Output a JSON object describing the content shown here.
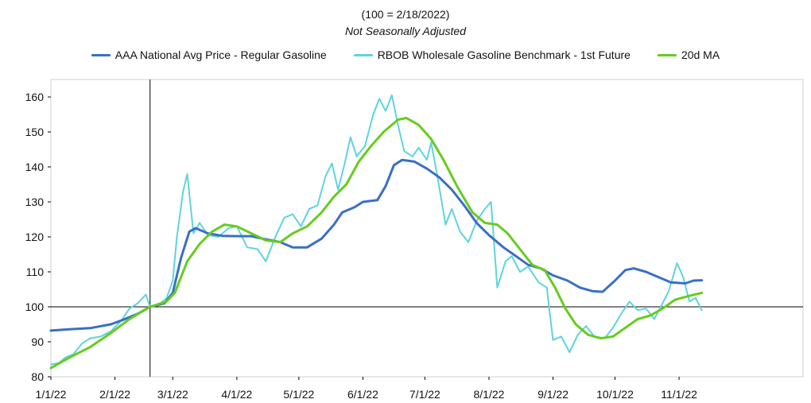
{
  "chart_data": {
    "type": "line",
    "title": "(100 = 2/18/2022)",
    "subtitle": "Not Seasonally Adjusted",
    "xlabel": "",
    "ylabel": "",
    "ylim": [
      80,
      165
    ],
    "yticks": [
      80,
      90,
      100,
      110,
      120,
      130,
      140,
      150,
      160
    ],
    "xticks": [
      "1/1/22",
      "2/1/22",
      "3/1/22",
      "4/1/22",
      "5/1/22",
      "6/1/22",
      "7/1/22",
      "8/1/22",
      "9/1/22",
      "10/1/22",
      "11/1/22"
    ],
    "xlim": [
      "2022-01-01",
      "2022-12-31"
    ],
    "reference_line": {
      "date": "2022-02-18",
      "value": 100
    },
    "grid": false,
    "legend_position": "top",
    "series": [
      {
        "name": "AAA National Avg Price - Regular Gasoline",
        "color": "#3a6fc4",
        "points": [
          [
            "2022-01-01",
            93.2
          ],
          [
            "2022-01-10",
            93.6
          ],
          [
            "2022-01-20",
            93.9
          ],
          [
            "2022-01-30",
            95.0
          ],
          [
            "2022-02-05",
            96.3
          ],
          [
            "2022-02-12",
            98.0
          ],
          [
            "2022-02-18",
            100.0
          ],
          [
            "2022-02-25",
            101.0
          ],
          [
            "2022-03-01",
            104.0
          ],
          [
            "2022-03-05",
            114.0
          ],
          [
            "2022-03-09",
            121.5
          ],
          [
            "2022-03-12",
            122.5
          ],
          [
            "2022-03-18",
            121.0
          ],
          [
            "2022-03-25",
            120.3
          ],
          [
            "2022-04-01",
            120.2
          ],
          [
            "2022-04-08",
            120.2
          ],
          [
            "2022-04-15",
            119.3
          ],
          [
            "2022-04-22",
            118.5
          ],
          [
            "2022-04-28",
            117.0
          ],
          [
            "2022-05-05",
            117.0
          ],
          [
            "2022-05-12",
            119.5
          ],
          [
            "2022-05-18",
            123.5
          ],
          [
            "2022-05-22",
            127.0
          ],
          [
            "2022-05-28",
            128.5
          ],
          [
            "2022-06-01",
            130.0
          ],
          [
            "2022-06-08",
            130.5
          ],
          [
            "2022-06-12",
            134.5
          ],
          [
            "2022-06-16",
            140.5
          ],
          [
            "2022-06-20",
            142.0
          ],
          [
            "2022-06-26",
            141.5
          ],
          [
            "2022-07-02",
            139.5
          ],
          [
            "2022-07-08",
            137.0
          ],
          [
            "2022-07-14",
            133.5
          ],
          [
            "2022-07-20",
            129.0
          ],
          [
            "2022-07-26",
            124.0
          ],
          [
            "2022-08-01",
            120.5
          ],
          [
            "2022-08-08",
            117.0
          ],
          [
            "2022-08-14",
            114.5
          ],
          [
            "2022-08-20",
            112.0
          ],
          [
            "2022-08-26",
            111.0
          ],
          [
            "2022-09-01",
            109.0
          ],
          [
            "2022-09-08",
            107.5
          ],
          [
            "2022-09-14",
            105.5
          ],
          [
            "2022-09-20",
            104.5
          ],
          [
            "2022-09-25",
            104.3
          ],
          [
            "2022-10-01",
            107.5
          ],
          [
            "2022-10-06",
            110.5
          ],
          [
            "2022-10-10",
            111.0
          ],
          [
            "2022-10-16",
            110.0
          ],
          [
            "2022-10-22",
            108.5
          ],
          [
            "2022-10-28",
            107.0
          ],
          [
            "2022-11-04",
            106.7
          ],
          [
            "2022-11-08",
            107.5
          ],
          [
            "2022-11-12",
            107.6
          ]
        ]
      },
      {
        "name": "RBOB Wholesale Gasoline Benchmark - 1st Future",
        "color": "#5fd3e0",
        "points": [
          [
            "2022-01-01",
            83.5
          ],
          [
            "2022-01-05",
            84.0
          ],
          [
            "2022-01-08",
            85.5
          ],
          [
            "2022-01-12",
            86.5
          ],
          [
            "2022-01-16",
            89.5
          ],
          [
            "2022-01-20",
            91.0
          ],
          [
            "2022-01-25",
            91.5
          ],
          [
            "2022-01-30",
            93.0
          ],
          [
            "2022-02-04",
            96.0
          ],
          [
            "2022-02-08",
            99.5
          ],
          [
            "2022-02-12",
            101.0
          ],
          [
            "2022-02-16",
            103.5
          ],
          [
            "2022-02-18",
            100.0
          ],
          [
            "2022-02-22",
            100.5
          ],
          [
            "2022-02-26",
            102.5
          ],
          [
            "2022-03-01",
            107.5
          ],
          [
            "2022-03-03",
            120.0
          ],
          [
            "2022-03-06",
            133.0
          ],
          [
            "2022-03-08",
            138.0
          ],
          [
            "2022-03-11",
            121.0
          ],
          [
            "2022-03-14",
            124.0
          ],
          [
            "2022-03-18",
            120.5
          ],
          [
            "2022-03-23",
            120.0
          ],
          [
            "2022-03-28",
            122.5
          ],
          [
            "2022-04-01",
            123.0
          ],
          [
            "2022-04-06",
            117.0
          ],
          [
            "2022-04-11",
            116.5
          ],
          [
            "2022-04-15",
            113.0
          ],
          [
            "2022-04-20",
            120.5
          ],
          [
            "2022-04-24",
            125.5
          ],
          [
            "2022-04-28",
            126.5
          ],
          [
            "2022-05-02",
            123.0
          ],
          [
            "2022-05-06",
            128.0
          ],
          [
            "2022-05-10",
            129.0
          ],
          [
            "2022-05-14",
            137.5
          ],
          [
            "2022-05-17",
            141.0
          ],
          [
            "2022-05-20",
            133.5
          ],
          [
            "2022-05-23",
            140.5
          ],
          [
            "2022-05-26",
            148.5
          ],
          [
            "2022-05-29",
            143.0
          ],
          [
            "2022-06-02",
            146.0
          ],
          [
            "2022-06-06",
            155.0
          ],
          [
            "2022-06-09",
            159.5
          ],
          [
            "2022-06-12",
            156.0
          ],
          [
            "2022-06-15",
            160.5
          ],
          [
            "2022-06-18",
            152.0
          ],
          [
            "2022-06-21",
            144.5
          ],
          [
            "2022-06-25",
            143.0
          ],
          [
            "2022-06-28",
            145.5
          ],
          [
            "2022-07-02",
            142.0
          ],
          [
            "2022-07-04",
            147.0
          ],
          [
            "2022-07-07",
            137.5
          ],
          [
            "2022-07-11",
            123.5
          ],
          [
            "2022-07-14",
            128.0
          ],
          [
            "2022-07-18",
            121.5
          ],
          [
            "2022-07-22",
            118.5
          ],
          [
            "2022-07-26",
            124.5
          ],
          [
            "2022-07-30",
            128.0
          ],
          [
            "2022-08-02",
            130.0
          ],
          [
            "2022-08-05",
            105.5
          ],
          [
            "2022-08-09",
            113.0
          ],
          [
            "2022-08-12",
            114.5
          ],
          [
            "2022-08-16",
            110.0
          ],
          [
            "2022-08-20",
            111.5
          ],
          [
            "2022-08-25",
            107.0
          ],
          [
            "2022-08-29",
            105.5
          ],
          [
            "2022-09-01",
            90.5
          ],
          [
            "2022-09-05",
            91.5
          ],
          [
            "2022-09-09",
            87.0
          ],
          [
            "2022-09-13",
            92.0
          ],
          [
            "2022-09-17",
            94.5
          ],
          [
            "2022-09-21",
            91.5
          ],
          [
            "2022-09-26",
            91.0
          ],
          [
            "2022-09-30",
            94.0
          ],
          [
            "2022-10-04",
            98.0
          ],
          [
            "2022-10-08",
            101.5
          ],
          [
            "2022-10-12",
            99.0
          ],
          [
            "2022-10-16",
            99.5
          ],
          [
            "2022-10-20",
            96.5
          ],
          [
            "2022-10-24",
            101.0
          ],
          [
            "2022-10-27",
            104.5
          ],
          [
            "2022-10-31",
            112.5
          ],
          [
            "2022-11-03",
            108.5
          ],
          [
            "2022-11-06",
            101.5
          ],
          [
            "2022-11-09",
            102.5
          ],
          [
            "2022-11-12",
            99.0
          ]
        ]
      },
      {
        "name": "20d MA",
        "color": "#66cc1f",
        "points": [
          [
            "2022-01-01",
            82.5
          ],
          [
            "2022-01-10",
            85.5
          ],
          [
            "2022-01-20",
            88.5
          ],
          [
            "2022-01-30",
            92.5
          ],
          [
            "2022-02-08",
            96.5
          ],
          [
            "2022-02-18",
            100.0
          ],
          [
            "2022-02-26",
            101.5
          ],
          [
            "2022-03-02",
            104.0
          ],
          [
            "2022-03-08",
            113.0
          ],
          [
            "2022-03-14",
            118.0
          ],
          [
            "2022-03-20",
            121.5
          ],
          [
            "2022-03-26",
            123.5
          ],
          [
            "2022-04-01",
            123.0
          ],
          [
            "2022-04-08",
            121.0
          ],
          [
            "2022-04-15",
            119.0
          ],
          [
            "2022-04-22",
            118.5
          ],
          [
            "2022-04-28",
            121.0
          ],
          [
            "2022-05-05",
            123.0
          ],
          [
            "2022-05-12",
            127.0
          ],
          [
            "2022-05-18",
            131.5
          ],
          [
            "2022-05-24",
            135.0
          ],
          [
            "2022-05-30",
            141.5
          ],
          [
            "2022-06-05",
            146.0
          ],
          [
            "2022-06-11",
            150.0
          ],
          [
            "2022-06-18",
            153.5
          ],
          [
            "2022-06-22",
            154.0
          ],
          [
            "2022-06-28",
            152.0
          ],
          [
            "2022-07-04",
            148.0
          ],
          [
            "2022-07-10",
            142.0
          ],
          [
            "2022-07-17",
            134.0
          ],
          [
            "2022-07-24",
            127.0
          ],
          [
            "2022-07-30",
            124.0
          ],
          [
            "2022-08-05",
            123.5
          ],
          [
            "2022-08-10",
            121.0
          ],
          [
            "2022-08-16",
            116.5
          ],
          [
            "2022-08-22",
            112.0
          ],
          [
            "2022-08-28",
            110.5
          ],
          [
            "2022-09-02",
            105.5
          ],
          [
            "2022-09-07",
            99.5
          ],
          [
            "2022-09-12",
            95.0
          ],
          [
            "2022-09-18",
            92.0
          ],
          [
            "2022-09-24",
            91.0
          ],
          [
            "2022-09-30",
            91.5
          ],
          [
            "2022-10-06",
            94.0
          ],
          [
            "2022-10-12",
            96.5
          ],
          [
            "2022-10-18",
            97.5
          ],
          [
            "2022-10-24",
            99.5
          ],
          [
            "2022-10-30",
            102.0
          ],
          [
            "2022-11-05",
            103.0
          ],
          [
            "2022-11-12",
            104.0
          ]
        ]
      }
    ]
  }
}
